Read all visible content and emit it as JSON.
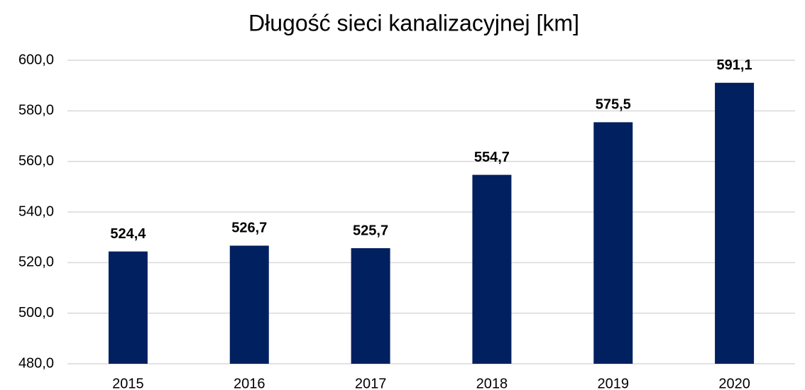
{
  "chart_data": {
    "type": "bar",
    "title": "Długość sieci kanalizacyjnej [km]",
    "categories": [
      "2015",
      "2016",
      "2017",
      "2018",
      "2019",
      "2020"
    ],
    "values": [
      524.4,
      526.7,
      525.7,
      554.7,
      575.5,
      591.1
    ],
    "value_labels": [
      "524,4",
      "526,7",
      "525,7",
      "554,7",
      "575,5",
      "591,1"
    ],
    "color": "#002060",
    "ylim": [
      480,
      600
    ],
    "yticks": [
      {
        "value": 480,
        "label": "480,0"
      },
      {
        "value": 500,
        "label": "500,0"
      },
      {
        "value": 520,
        "label": "520,0"
      },
      {
        "value": 540,
        "label": "540,0"
      },
      {
        "value": 560,
        "label": "560,0"
      },
      {
        "value": 580,
        "label": "580,0"
      },
      {
        "value": 600,
        "label": "600,0"
      }
    ],
    "grid": true
  }
}
